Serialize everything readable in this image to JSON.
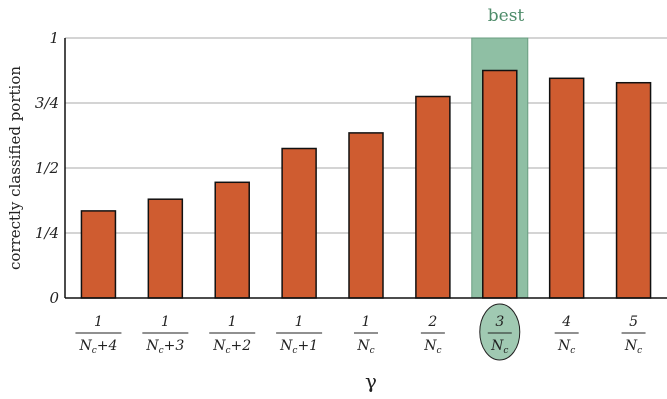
{
  "chart_data": {
    "type": "bar",
    "title": "",
    "xlabel": "γ",
    "ylabel": "correctly classified portion",
    "ylim": [
      0,
      1
    ],
    "grid": true,
    "yticks": [
      {
        "value": 0,
        "label": "0"
      },
      {
        "value": 0.25,
        "label": "1/4"
      },
      {
        "value": 0.5,
        "label": "1/2"
      },
      {
        "value": 0.75,
        "label": "3/4"
      },
      {
        "value": 1,
        "label": "1"
      }
    ],
    "categories": [
      {
        "num": "1",
        "den": "N",
        "sub": "c",
        "suffix": "+4"
      },
      {
        "num": "1",
        "den": "N",
        "sub": "c",
        "suffix": "+3"
      },
      {
        "num": "1",
        "den": "N",
        "sub": "c",
        "suffix": "+2"
      },
      {
        "num": "1",
        "den": "N",
        "sub": "c",
        "suffix": "+1"
      },
      {
        "num": "1",
        "den": "N",
        "sub": "c",
        "suffix": ""
      },
      {
        "num": "2",
        "den": "N",
        "sub": "c",
        "suffix": ""
      },
      {
        "num": "3",
        "den": "N",
        "sub": "c",
        "suffix": ""
      },
      {
        "num": "4",
        "den": "N",
        "sub": "c",
        "suffix": ""
      },
      {
        "num": "5",
        "den": "N",
        "sub": "c",
        "suffix": ""
      }
    ],
    "values": [
      0.335,
      0.38,
      0.445,
      0.575,
      0.635,
      0.775,
      0.875,
      0.845,
      0.828
    ],
    "highlight": {
      "index": 6,
      "label": "best",
      "color": "#8fbfa4"
    },
    "bar_color": "#cf5c30"
  }
}
